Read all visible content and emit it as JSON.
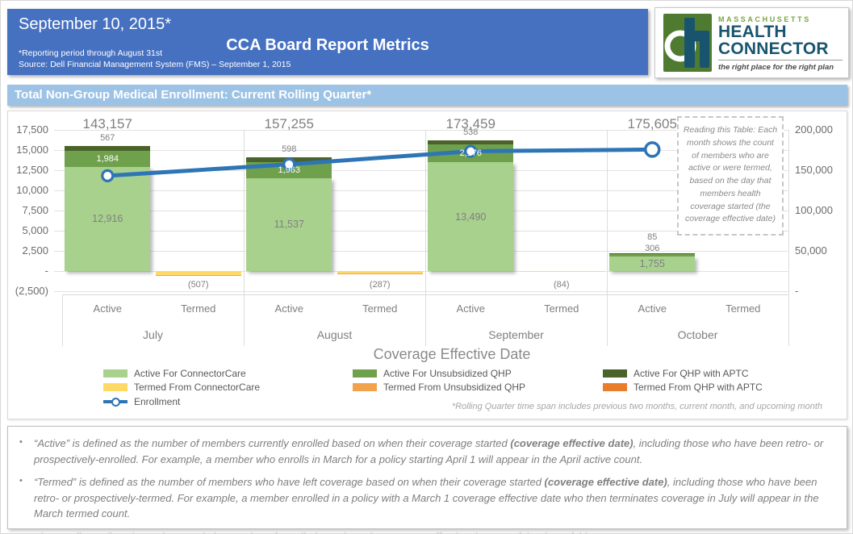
{
  "header": {
    "date": "September 10, 2015*",
    "title": "CCA Board Report Metrics",
    "reporting_note": "*Reporting period through August 31st",
    "source_note": "Source: Dell Financial Management System (FMS) – September 1, 2015",
    "logo": {
      "region": "MASSACHUSETTS",
      "name_line1": "HEALTH",
      "name_line2": "CONNECTOR",
      "tagline": "the right place for the right plan",
      "letter": "H",
      "green": "#4E7B2F",
      "blue": "#19546F"
    }
  },
  "section_title": "Total Non-Group Medical Enrollment: Current Rolling Quarter*",
  "chart_data": {
    "type": "stacked-bar+line",
    "categories": [
      "July",
      "August",
      "September",
      "October"
    ],
    "sub_categories": [
      "Active",
      "Termed"
    ],
    "xlabel": "Coverage Effective Date",
    "left_axis": {
      "ticks": [
        "17,500",
        "15,000",
        "12,500",
        "10,000",
        "7,500",
        "5,000",
        "2,500",
        "-",
        "(2,500)"
      ],
      "max": 17500,
      "min": -2500,
      "step": 2500
    },
    "right_axis": {
      "ticks": [
        "200,000",
        "150,000",
        "100,000",
        "50,000",
        "-"
      ],
      "max": 200000,
      "min": 0,
      "step": 50000
    },
    "active_stack": [
      {
        "name": "Active For ConnectorCare",
        "color": "#A9D18E",
        "values": [
          12916,
          11537,
          13490,
          1755
        ],
        "labels": [
          "12,916",
          "11,537",
          "13,490",
          "1,755"
        ]
      },
      {
        "name": "Active For Unsubsidized QHP",
        "color": "#6FA04C",
        "values": [
          1984,
          1963,
          2176,
          306
        ],
        "labels": [
          "1,984",
          "1,963",
          "2,176",
          "306"
        ]
      },
      {
        "name": "Active For QHP with APTC",
        "color": "#4A632A",
        "values": [
          567,
          598,
          538,
          85
        ],
        "labels": [
          "567",
          "598",
          "538",
          "85"
        ]
      }
    ],
    "termed_stack": [
      {
        "name": "Termed From ConnectorCare",
        "color": "#FFD966",
        "values": [
          507,
          287,
          84,
          0
        ],
        "labels": [
          "(507)",
          "(287)",
          "(84)",
          ""
        ]
      }
    ],
    "line": {
      "name": "Enrollment",
      "color": "#2E75B6",
      "values": [
        143157,
        157255,
        173459,
        175605
      ],
      "labels": [
        "143,157",
        "157,255",
        "173,459",
        "175,605"
      ]
    },
    "grid": true,
    "legend_position": "bottom"
  },
  "legend": [
    {
      "label": "Active For ConnectorCare",
      "swatch": "#A9D18E",
      "kind": "box",
      "col": 0
    },
    {
      "label": "Termed From ConnectorCare",
      "swatch": "#FFD966",
      "kind": "box",
      "col": 0
    },
    {
      "label": "Enrollment",
      "swatch": "#2E75B6",
      "kind": "line",
      "col": 0
    },
    {
      "label": "Active For Unsubsidized QHP",
      "swatch": "#6FA04C",
      "kind": "box",
      "col": 1
    },
    {
      "label": "Termed From Unsubsidized QHP",
      "swatch": "#F2A24C",
      "kind": "box",
      "col": 1
    },
    {
      "label": "Active For QHP with APTC",
      "swatch": "#4A632A",
      "kind": "box",
      "col": 2
    },
    {
      "label": "Termed From QHP with APTC",
      "swatch": "#E87D2C",
      "kind": "box",
      "col": 2
    }
  ],
  "annotation": "Reading this Table: Each month shows the count of members who are active or were termed, based on the day that members health coverage started (the coverage effective date)",
  "chart_footnote": "*Rolling Quarter time span includes previous two months, current month, and upcoming month",
  "notes": [
    [
      {
        "t": "“Active” is defined as the number of members currently enrolled based on when their coverage started ",
        "b": false
      },
      {
        "t": "(coverage effective date)",
        "b": true
      },
      {
        "t": ", including those who have been retro- or prospectively-enrolled.  For example, a member who enrolls in March for a policy starting April 1 will appear in the April active count.",
        "b": false
      }
    ],
    [
      {
        "t": "“Termed” is defined as the number of members who have left coverage based on when their coverage started ",
        "b": false
      },
      {
        "t": "(coverage effective date)",
        "b": true
      },
      {
        "t": ", including those who have been retro- or prospectively-termed.  For example, a member enrolled in a policy with a March 1 coverage effective date who then terminates coverage in July will appear in the March termed count.",
        "b": false
      }
    ],
    [
      {
        "t": "The enrollment line shows the cumulative number of enrolled members, by coverage effective date, as of the date of this report.",
        "b": false
      }
    ]
  ]
}
